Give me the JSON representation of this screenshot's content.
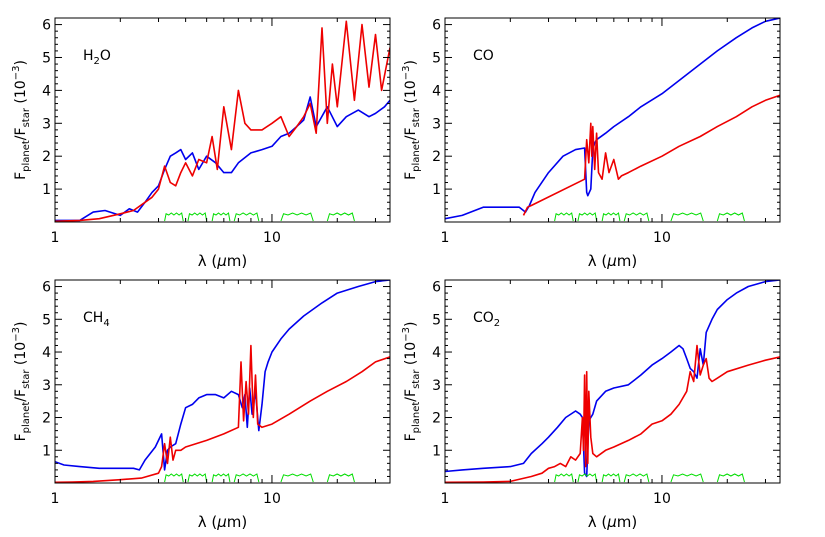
{
  "chart_data": [
    {
      "type": "line",
      "panel_label": "H",
      "panel_label_sub": "2",
      "panel_label_tail": "O",
      "xlabel_pre": "λ (",
      "xlabel_mu": "μ",
      "xlabel_post": "m)",
      "ylabel_F": "F",
      "ylabel_sub1": "planet",
      "ylabel_slash": "/F",
      "ylabel_sub2": "star",
      "ylabel_unit_pre": "(10",
      "ylabel_unit_exp": "−3",
      "ylabel_unit_post": ")",
      "xscale": "log",
      "xlim": [
        1,
        35
      ],
      "ylim": [
        0,
        6.2
      ],
      "xticks": [
        {
          "v": 1,
          "label": "1"
        },
        {
          "v": 10,
          "label": "10"
        }
      ],
      "yticks": [
        {
          "v": 1,
          "label": "1"
        },
        {
          "v": 2,
          "label": "2"
        },
        {
          "v": 3,
          "label": "3"
        },
        {
          "v": 4,
          "label": "4"
        },
        {
          "v": 5,
          "label": "5"
        },
        {
          "v": 6,
          "label": "6"
        }
      ],
      "series": [
        {
          "color": "#0000ee",
          "x": [
            1.0,
            1.3,
            1.5,
            1.7,
            2.0,
            2.2,
            2.4,
            2.6,
            2.8,
            3.0,
            3.2,
            3.4,
            3.6,
            3.8,
            4.0,
            4.3,
            4.6,
            5.0,
            5.5,
            6.0,
            6.5,
            7.0,
            8.0,
            9.0,
            10,
            11,
            12,
            13,
            14,
            15,
            16,
            18,
            20,
            22,
            25,
            28,
            30,
            33,
            35
          ],
          "y": [
            0.05,
            0.05,
            0.3,
            0.35,
            0.2,
            0.4,
            0.3,
            0.6,
            0.9,
            1.1,
            1.6,
            2.0,
            2.1,
            2.2,
            1.9,
            2.1,
            1.6,
            2.0,
            1.8,
            1.5,
            1.5,
            1.8,
            2.1,
            2.2,
            2.3,
            2.6,
            2.7,
            2.9,
            3.1,
            3.8,
            2.9,
            3.5,
            2.9,
            3.2,
            3.4,
            3.2,
            3.3,
            3.5,
            3.7
          ]
        },
        {
          "color": "#ee0000",
          "x": [
            1.0,
            1.3,
            1.6,
            2.0,
            2.3,
            2.6,
            2.8,
            3.0,
            3.2,
            3.4,
            3.6,
            3.8,
            4.0,
            4.3,
            4.6,
            5.0,
            5.3,
            5.6,
            6.0,
            6.5,
            7.0,
            7.5,
            8.0,
            9.0,
            10,
            11,
            12,
            13,
            14,
            15,
            16,
            17,
            18,
            19,
            20,
            22,
            24,
            26,
            28,
            30,
            32,
            35
          ],
          "y": [
            0.02,
            0.05,
            0.1,
            0.25,
            0.35,
            0.6,
            0.75,
            1.0,
            1.7,
            1.2,
            1.1,
            1.5,
            1.8,
            1.4,
            1.9,
            1.8,
            2.6,
            1.6,
            3.5,
            2.2,
            4.0,
            3.0,
            2.8,
            2.8,
            3.0,
            3.2,
            2.6,
            2.9,
            3.2,
            3.6,
            2.7,
            5.9,
            3.0,
            4.8,
            3.5,
            6.1,
            3.7,
            6.0,
            4.1,
            5.7,
            4.0,
            5.3
          ]
        },
        {
          "color": "#00dd00",
          "name": "bands",
          "bands": [
            [
              3.2,
              3.9
            ],
            [
              4.1,
              5.0
            ],
            [
              5.3,
              6.4
            ],
            [
              6.7,
              8.7
            ],
            [
              11,
              15.5
            ],
            [
              18,
              24
            ]
          ],
          "x": [],
          "y": []
        }
      ]
    },
    {
      "type": "line",
      "panel_label": "CO",
      "panel_label_sub": "",
      "panel_label_tail": "",
      "xlabel_pre": "λ (",
      "xlabel_mu": "μ",
      "xlabel_post": "m)",
      "ylabel_F": "F",
      "ylabel_sub1": "planet",
      "ylabel_slash": "/F",
      "ylabel_sub2": "star",
      "ylabel_unit_pre": "(10",
      "ylabel_unit_exp": "−3",
      "ylabel_unit_post": ")",
      "xscale": "log",
      "xlim": [
        1,
        35
      ],
      "ylim": [
        0,
        6.2
      ],
      "xticks": [
        {
          "v": 1,
          "label": "1"
        },
        {
          "v": 10,
          "label": "10"
        }
      ],
      "yticks": [
        {
          "v": 1,
          "label": "1"
        },
        {
          "v": 2,
          "label": "2"
        },
        {
          "v": 3,
          "label": "3"
        },
        {
          "v": 4,
          "label": "4"
        },
        {
          "v": 5,
          "label": "5"
        },
        {
          "v": 6,
          "label": "6"
        }
      ],
      "series": [
        {
          "color": "#0000ee",
          "x": [
            1.0,
            1.2,
            1.5,
            1.8,
            2.0,
            2.2,
            2.35,
            2.45,
            2.6,
            3.0,
            3.5,
            4.0,
            4.4,
            4.5,
            4.55,
            4.7,
            4.8,
            4.9,
            5.0,
            5.5,
            6.0,
            7.0,
            8.0,
            10,
            12,
            15,
            18,
            22,
            26,
            30,
            35
          ],
          "y": [
            0.1,
            0.2,
            0.45,
            0.45,
            0.45,
            0.45,
            0.3,
            0.5,
            0.9,
            1.5,
            2.0,
            2.2,
            2.25,
            0.9,
            0.8,
            1.0,
            2.2,
            2.4,
            2.5,
            2.7,
            2.9,
            3.2,
            3.5,
            3.9,
            4.3,
            4.8,
            5.2,
            5.6,
            5.9,
            6.1,
            6.2
          ]
        },
        {
          "color": "#ee0000",
          "x": [
            2.3,
            2.4,
            2.5,
            4.4,
            4.5,
            4.6,
            4.7,
            4.75,
            4.8,
            4.9,
            5.0,
            5.1,
            5.3,
            5.5,
            5.7,
            6.0,
            6.3,
            6.5,
            7.0,
            8.0,
            10,
            12,
            15,
            18,
            22,
            26,
            30,
            35
          ],
          "y": [
            0.2,
            0.45,
            0.5,
            1.3,
            2.5,
            1.8,
            3.0,
            2.0,
            2.9,
            1.6,
            2.7,
            1.5,
            1.3,
            2.1,
            1.5,
            1.9,
            1.3,
            1.4,
            1.5,
            1.7,
            2.0,
            2.3,
            2.6,
            2.9,
            3.2,
            3.5,
            3.7,
            3.85
          ]
        },
        {
          "color": "#00dd00",
          "name": "bands",
          "bands": [
            [
              3.2,
              3.9
            ],
            [
              4.1,
              5.0
            ],
            [
              5.3,
              6.4
            ],
            [
              6.7,
              8.7
            ],
            [
              11,
              15.5
            ],
            [
              18,
              24
            ]
          ],
          "x": [],
          "y": []
        }
      ]
    },
    {
      "type": "line",
      "panel_label": "CH",
      "panel_label_sub": "4",
      "panel_label_tail": "",
      "xlabel_pre": "λ (",
      "xlabel_mu": "μ",
      "xlabel_post": "m)",
      "ylabel_F": "F",
      "ylabel_sub1": "planet",
      "ylabel_slash": "/F",
      "ylabel_sub2": "star",
      "ylabel_unit_pre": "(10",
      "ylabel_unit_exp": "−3",
      "ylabel_unit_post": ")",
      "xscale": "log",
      "xlim": [
        1,
        35
      ],
      "ylim": [
        0,
        6.2
      ],
      "xticks": [
        {
          "v": 1,
          "label": "1"
        },
        {
          "v": 10,
          "label": "10"
        }
      ],
      "yticks": [
        {
          "v": 1,
          "label": "1"
        },
        {
          "v": 2,
          "label": "2"
        },
        {
          "v": 3,
          "label": "3"
        },
        {
          "v": 4,
          "label": "4"
        },
        {
          "v": 5,
          "label": "5"
        },
        {
          "v": 6,
          "label": "6"
        }
      ],
      "series": [
        {
          "color": "#0000ee",
          "x": [
            1.0,
            1.1,
            1.3,
            1.6,
            2.0,
            2.3,
            2.45,
            2.6,
            2.9,
            3.1,
            3.2,
            3.3,
            3.4,
            3.6,
            3.8,
            4.0,
            4.3,
            4.6,
            5.0,
            5.5,
            6.0,
            6.5,
            7.0,
            7.3,
            7.5,
            7.7,
            7.9,
            8.1,
            8.4,
            8.7,
            9.0,
            9.3,
            9.6,
            10,
            11,
            12,
            14,
            17,
            20,
            25,
            30,
            35
          ],
          "y": [
            0.65,
            0.55,
            0.5,
            0.45,
            0.45,
            0.45,
            0.4,
            0.7,
            1.1,
            1.5,
            0.4,
            1.0,
            1.1,
            1.2,
            1.8,
            2.3,
            2.4,
            2.6,
            2.7,
            2.7,
            2.6,
            2.8,
            2.7,
            2.3,
            2.7,
            1.7,
            2.9,
            2.1,
            2.8,
            1.6,
            2.4,
            3.4,
            3.7,
            4.0,
            4.4,
            4.7,
            5.1,
            5.5,
            5.8,
            6.0,
            6.15,
            6.2
          ]
        },
        {
          "color": "#ee0000",
          "x": [
            1.0,
            1.2,
            1.5,
            2.0,
            2.5,
            3.0,
            3.1,
            3.2,
            3.3,
            3.4,
            3.5,
            3.6,
            3.8,
            4.0,
            5.0,
            6.0,
            7.0,
            7.2,
            7.4,
            7.6,
            7.8,
            8.0,
            8.2,
            8.4,
            8.6,
            9.0,
            10,
            12,
            15,
            18,
            22,
            26,
            30,
            35
          ],
          "y": [
            0.02,
            0.03,
            0.05,
            0.1,
            0.15,
            0.3,
            0.5,
            1.2,
            0.6,
            1.4,
            0.7,
            1.0,
            1.0,
            1.1,
            1.3,
            1.5,
            1.7,
            3.7,
            1.9,
            3.1,
            2.1,
            4.2,
            2.0,
            3.3,
            1.8,
            1.7,
            1.8,
            2.1,
            2.5,
            2.8,
            3.1,
            3.4,
            3.7,
            3.85
          ]
        },
        {
          "color": "#00dd00",
          "name": "bands",
          "bands": [
            [
              3.2,
              3.9
            ],
            [
              4.1,
              5.0
            ],
            [
              5.3,
              6.4
            ],
            [
              6.7,
              8.7
            ],
            [
              11,
              15.5
            ],
            [
              18,
              24
            ]
          ],
          "x": [],
          "y": []
        }
      ]
    },
    {
      "type": "line",
      "panel_label": "CO",
      "panel_label_sub": "2",
      "panel_label_tail": "",
      "xlabel_pre": "λ (",
      "xlabel_mu": "μ",
      "xlabel_post": "m)",
      "ylabel_F": "F",
      "ylabel_sub1": "planet",
      "ylabel_slash": "/F",
      "ylabel_sub2": "star",
      "ylabel_unit_pre": "(10",
      "ylabel_unit_exp": "−3",
      "ylabel_unit_post": ")",
      "xscale": "log",
      "xlim": [
        1,
        35
      ],
      "ylim": [
        0,
        6.2
      ],
      "xticks": [
        {
          "v": 1,
          "label": "1"
        },
        {
          "v": 10,
          "label": "10"
        }
      ],
      "yticks": [
        {
          "v": 1,
          "label": "1"
        },
        {
          "v": 2,
          "label": "2"
        },
        {
          "v": 3,
          "label": "3"
        },
        {
          "v": 4,
          "label": "4"
        },
        {
          "v": 5,
          "label": "5"
        },
        {
          "v": 6,
          "label": "6"
        }
      ],
      "series": [
        {
          "color": "#0000ee",
          "x": [
            1.0,
            1.2,
            1.5,
            2.0,
            2.3,
            2.5,
            2.8,
            3.0,
            3.3,
            3.6,
            4.0,
            4.2,
            4.3,
            4.4,
            4.5,
            4.6,
            4.7,
            4.8,
            5.0,
            5.5,
            6.0,
            7.0,
            8.0,
            9.0,
            10,
            11,
            12,
            12.5,
            13,
            13.5,
            14,
            14.5,
            15,
            15.5,
            16,
            17,
            18,
            20,
            22,
            25,
            30,
            35
          ],
          "y": [
            0.35,
            0.4,
            0.45,
            0.5,
            0.6,
            0.9,
            1.2,
            1.4,
            1.7,
            2.0,
            2.2,
            2.1,
            2.0,
            0.3,
            0.2,
            1.9,
            2.0,
            2.1,
            2.5,
            2.8,
            2.9,
            3.0,
            3.3,
            3.6,
            3.8,
            4.0,
            4.2,
            4.1,
            3.8,
            3.5,
            3.4,
            3.2,
            4.1,
            3.6,
            4.6,
            5.0,
            5.3,
            5.6,
            5.8,
            6.0,
            6.15,
            6.2
          ]
        },
        {
          "color": "#ee0000",
          "x": [
            1.0,
            1.5,
            2.0,
            2.5,
            2.8,
            3.0,
            3.2,
            3.4,
            3.6,
            3.8,
            4.0,
            4.2,
            4.3,
            4.35,
            4.4,
            4.45,
            4.5,
            4.55,
            4.6,
            4.7,
            4.8,
            5.0,
            5.5,
            6.0,
            7.0,
            8.0,
            9.0,
            10,
            11,
            12,
            13,
            13.5,
            14,
            14.5,
            15,
            15.5,
            16,
            16.5,
            17,
            18,
            20,
            25,
            30,
            35
          ],
          "y": [
            0.02,
            0.03,
            0.05,
            0.2,
            0.3,
            0.45,
            0.5,
            0.6,
            0.5,
            0.8,
            0.7,
            0.9,
            2.0,
            1.0,
            3.3,
            0.5,
            3.4,
            0.6,
            2.8,
            1.4,
            0.9,
            0.8,
            1.0,
            1.1,
            1.3,
            1.5,
            1.8,
            1.9,
            2.1,
            2.4,
            2.8,
            3.4,
            3.1,
            4.2,
            3.3,
            3.6,
            3.8,
            3.2,
            3.1,
            3.2,
            3.4,
            3.6,
            3.75,
            3.85
          ]
        },
        {
          "color": "#00dd00",
          "name": "bands",
          "bands": [
            [
              3.2,
              3.9
            ],
            [
              4.1,
              5.0
            ],
            [
              5.3,
              6.4
            ],
            [
              6.7,
              8.7
            ],
            [
              11,
              15.5
            ],
            [
              18,
              24
            ]
          ],
          "x": [],
          "y": []
        }
      ]
    }
  ]
}
